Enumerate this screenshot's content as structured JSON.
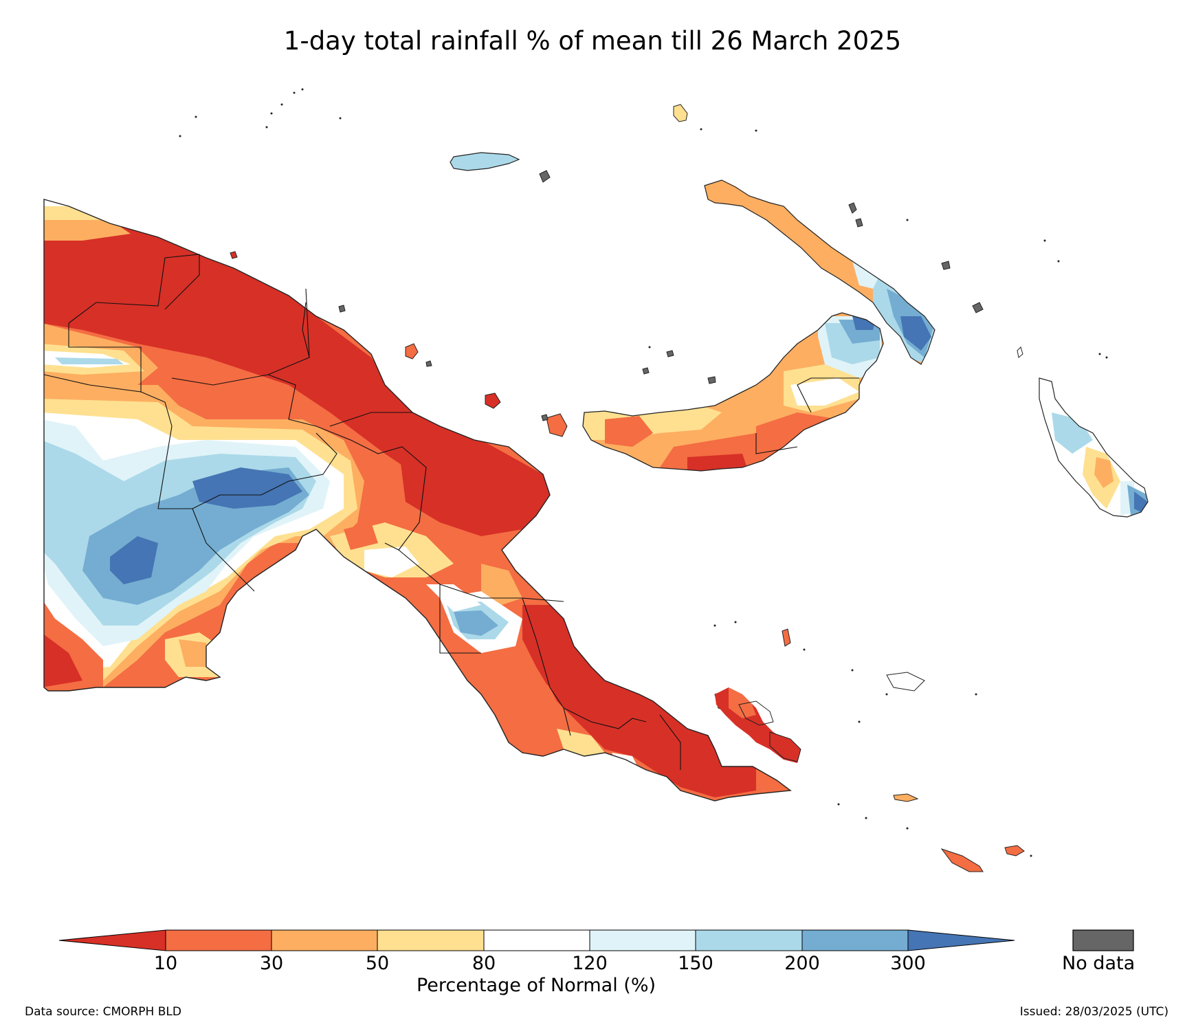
{
  "title": "1-day total rainfall % of mean till 26 March 2025",
  "legend": {
    "ticks": [
      "10",
      "30",
      "50",
      "80",
      "120",
      "150",
      "200",
      "300"
    ],
    "label": "Percentage of Normal (%)",
    "nodata_label": "No data",
    "colors": {
      "lt10": "#d73027",
      "c10_30": "#f46d43",
      "c30_50": "#fdae61",
      "c50_80": "#fee090",
      "c80_120": "#ffffff",
      "c120_150": "#e0f3f8",
      "c150_200": "#abd9e9",
      "c200_300": "#74add1",
      "gt300": "#4575b4",
      "nodata": "#666666"
    }
  },
  "footer": {
    "source": "Data source: CMORPH BLD",
    "issued": "Issued: 28/03/2025 (UTC)"
  }
}
